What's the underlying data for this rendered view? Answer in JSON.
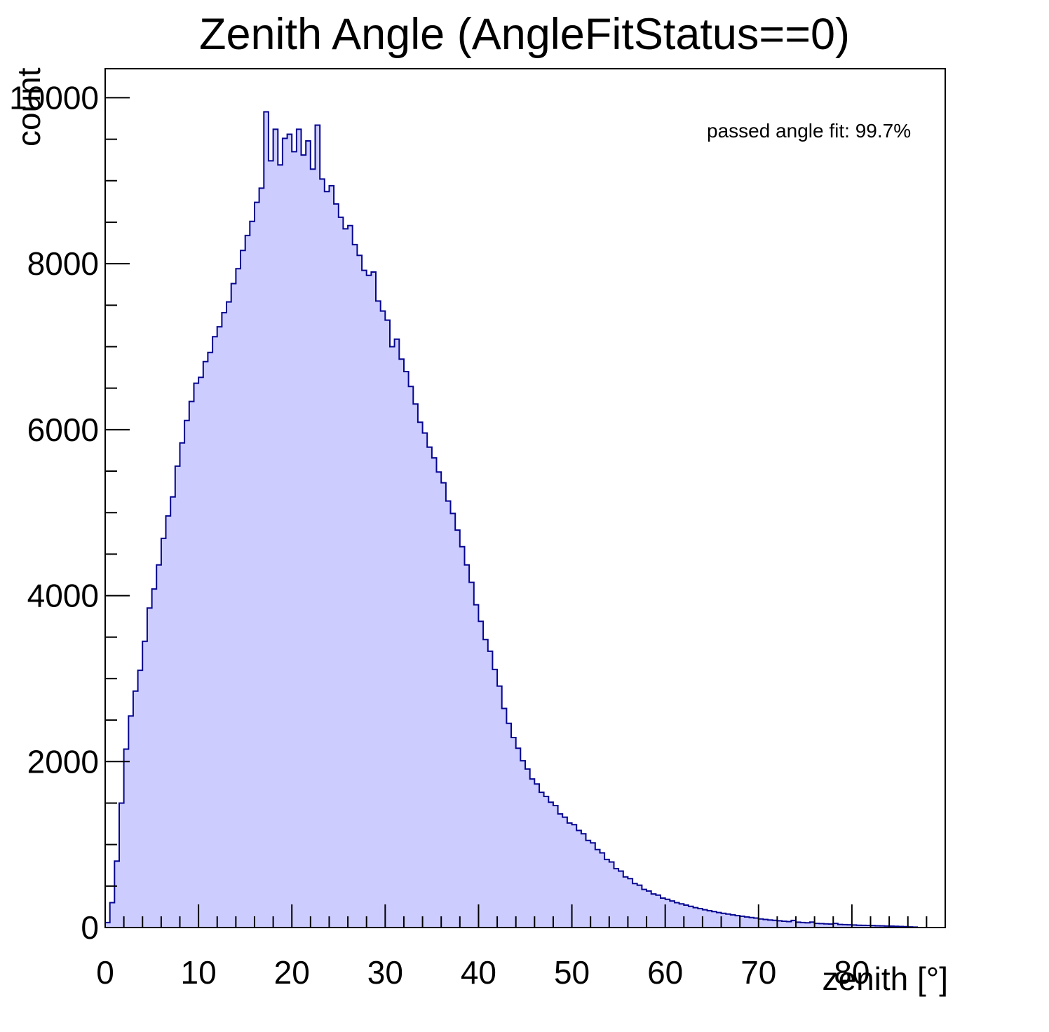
{
  "chart": {
    "title": "Zenith Angle (AngleFitStatus==0)",
    "annotation": "passed angle fit: 99.7%",
    "x_axis": {
      "title": "zenith [°]"
    },
    "y_axis": {
      "title": "count"
    },
    "colors": {
      "histogram_fill": "#ccccff",
      "histogram_line": "#050591",
      "axis": "#000000",
      "background": "#ffffff"
    }
  },
  "chart_data": {
    "type": "bar",
    "subtype": "histogram",
    "title": "Zenith Angle (AngleFitStatus==0)",
    "xlabel": "zenith [°]",
    "ylabel": "count",
    "annotation": "passed angle fit: 99.7%",
    "xlim": [
      0,
      90
    ],
    "ylim": [
      0,
      10350
    ],
    "grid": false,
    "legend": false,
    "x_major_ticks": [
      0,
      10,
      20,
      30,
      40,
      50,
      60,
      70,
      80
    ],
    "x_minor_step": 2,
    "x_minor_max": 88,
    "y_major_ticks": [
      0,
      2000,
      4000,
      6000,
      8000,
      10000
    ],
    "y_minor_step": 500,
    "bin_start": 0,
    "bin_width": 0.5,
    "counts": [
      60,
      300,
      800,
      1500,
      2150,
      2550,
      2850,
      3100,
      3450,
      3850,
      4080,
      4370,
      4690,
      4960,
      5190,
      5560,
      5840,
      6110,
      6340,
      6560,
      6630,
      6820,
      6930,
      7120,
      7240,
      7410,
      7540,
      7760,
      7940,
      8160,
      8340,
      8510,
      8740,
      8910,
      9830,
      9240,
      9620,
      9190,
      9510,
      9560,
      9350,
      9620,
      9310,
      9480,
      9140,
      9670,
      9020,
      8870,
      8940,
      8720,
      8560,
      8420,
      8460,
      8230,
      8100,
      7920,
      7860,
      7900,
      7550,
      7430,
      7320,
      7000,
      7090,
      6850,
      6700,
      6520,
      6310,
      6090,
      5960,
      5790,
      5660,
      5490,
      5360,
      5140,
      4990,
      4790,
      4590,
      4370,
      4160,
      3890,
      3690,
      3470,
      3330,
      3110,
      2910,
      2640,
      2460,
      2290,
      2160,
      2010,
      1910,
      1790,
      1730,
      1630,
      1580,
      1510,
      1470,
      1370,
      1330,
      1260,
      1240,
      1170,
      1130,
      1050,
      1020,
      940,
      900,
      820,
      790,
      710,
      680,
      610,
      590,
      530,
      510,
      460,
      440,
      405,
      390,
      355,
      340,
      320,
      300,
      285,
      270,
      255,
      240,
      228,
      215,
      203,
      192,
      181,
      171,
      162,
      153,
      144,
      136,
      128,
      121,
      114,
      103,
      97,
      91,
      86,
      81,
      76,
      72,
      85,
      64,
      60,
      57,
      65,
      50,
      47,
      44,
      42,
      50,
      37,
      35,
      33,
      30,
      28,
      26,
      25,
      23,
      21,
      20,
      18,
      17,
      15,
      13,
      11,
      8,
      5,
      0,
      0,
      0,
      0,
      0,
      0
    ]
  }
}
